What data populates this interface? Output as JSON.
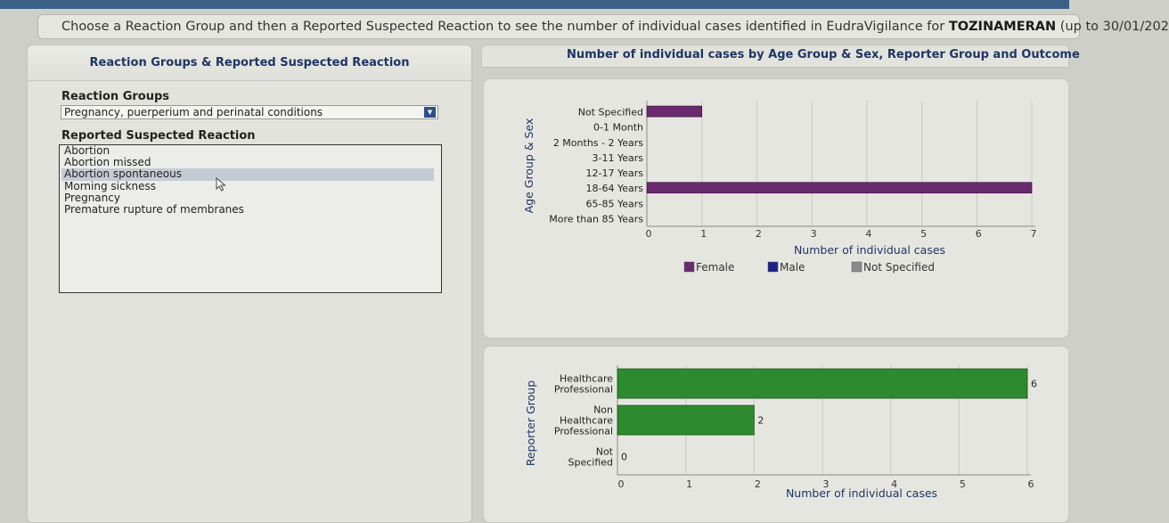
{
  "header": {
    "title_prefix": "Choose a Reaction Group and then a Reported Suspected Reaction to see the number of individual cases identified in EudraVigilance for ",
    "product": "TOZINAMERAN",
    "title_suffix": " (up to 30/01/202"
  },
  "left_panel": {
    "title": "Reaction Groups & Reported Suspected Reaction",
    "reaction_groups_label": "Reaction Groups",
    "reaction_group_selected": "Pregnancy, puerperium and perinatal conditions",
    "reported_reaction_label": "Reported Suspected Reaction",
    "reactions": [
      {
        "label": "Abortion",
        "selected": false
      },
      {
        "label": "Abortion missed",
        "selected": false
      },
      {
        "label": "Abortion spontaneous",
        "selected": true
      },
      {
        "label": "Morning sickness",
        "selected": false
      },
      {
        "label": "Pregnancy",
        "selected": false
      },
      {
        "label": "Premature rupture of membranes",
        "selected": false
      }
    ]
  },
  "right_panel": {
    "title": "Number of individual cases by Age Group & Sex, Reporter Group and Outcome"
  },
  "colors": {
    "female": "#6a2a6e",
    "male": "#1a2488",
    "not_specified": "#8a8a8a",
    "reporter_bar": "#2e8a2e",
    "panel_title": "#1f3565"
  },
  "chart_data": [
    {
      "type": "bar",
      "orientation": "horizontal",
      "ylabel": "Age Group & Sex",
      "xlabel": "Number of individual cases",
      "categories": [
        "Not Specified",
        "0-1 Month",
        "2 Months - 2 Years",
        "3-11 Years",
        "12-17 Years",
        "18-64 Years",
        "65-85 Years",
        "More than 85 Years"
      ],
      "series": [
        {
          "name": "Female",
          "values": [
            1,
            0,
            0,
            0,
            0,
            7,
            0,
            0
          ]
        },
        {
          "name": "Male",
          "values": [
            0,
            0,
            0,
            0,
            0,
            0,
            0,
            0
          ]
        },
        {
          "name": "Not Specified",
          "values": [
            0,
            0,
            0,
            0,
            0,
            0,
            0,
            0
          ]
        }
      ],
      "xlim": [
        0,
        7
      ],
      "xticks": [
        "0",
        "1",
        "2",
        "3",
        "4",
        "5",
        "6",
        "7"
      ],
      "legend": [
        "Female",
        "Male",
        "Not Specified"
      ],
      "legend_position": "bottom",
      "grid": true
    },
    {
      "type": "bar",
      "orientation": "horizontal",
      "ylabel": "Reporter Group",
      "xlabel": "Number of individual cases",
      "categories": [
        [
          "Healthcare",
          "Professional"
        ],
        [
          "Non",
          "Healthcare",
          "Professional"
        ],
        [
          "Not",
          "Specified"
        ]
      ],
      "values": [
        6,
        2,
        0
      ],
      "data_labels": [
        "6",
        "2",
        "0"
      ],
      "xlim": [
        0,
        6
      ],
      "xticks": [
        "0",
        "1",
        "2",
        "3",
        "4",
        "5",
        "6"
      ],
      "grid": true
    }
  ]
}
